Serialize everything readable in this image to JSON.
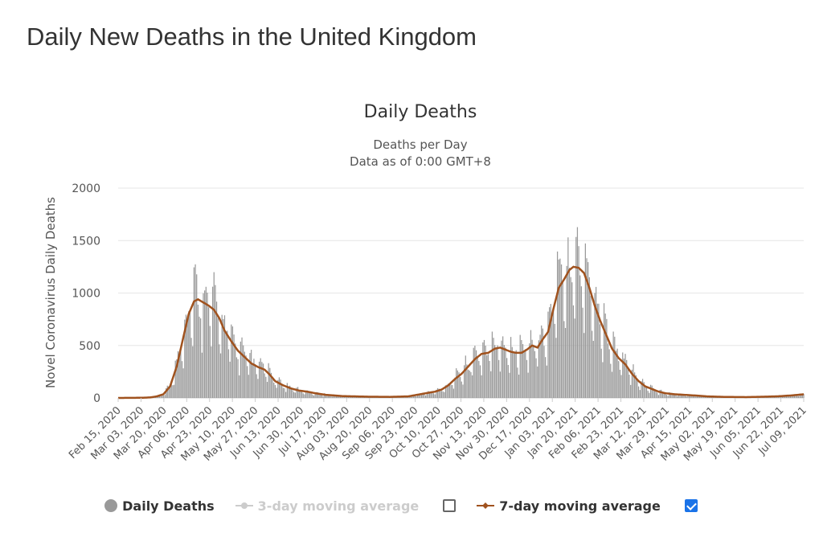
{
  "page": {
    "title": "Daily New Deaths in the United Kingdom"
  },
  "chart_data": {
    "type": "bar",
    "title": "Daily Deaths",
    "subtitle_lines": [
      "Deaths per Day",
      "Data as of 0:00 GMT+8"
    ],
    "xlabel": "",
    "ylabel": "Novel Coronavirus Daily Deaths",
    "ylim": [
      0,
      2000
    ],
    "y_ticks": [
      "0",
      "500",
      "1000",
      "1500",
      "2000"
    ],
    "x_range": [
      "2020-02-15",
      "2021-07-14"
    ],
    "x_tick_labels": [
      "Feb 15, 2020",
      "Mar 03, 2020",
      "Mar 20, 2020",
      "Apr 06, 2020",
      "Apr 23, 2020",
      "May 10, 2020",
      "May 27, 2020",
      "Jun 13, 2020",
      "Jun 30, 2020",
      "Jul 17, 2020",
      "Aug 03, 2020",
      "Aug 20, 2020",
      "Sep 06, 2020",
      "Sep 23, 2020",
      "Oct 10, 2020",
      "Oct 27, 2020",
      "Nov 13, 2020",
      "Nov 30, 2020",
      "Dec 17, 2020",
      "Jan 03, 2021",
      "Jan 20, 2021",
      "Feb 06, 2021",
      "Feb 23, 2021",
      "Mar 12, 2021",
      "Mar 29, 2021",
      "Apr 15, 2021",
      "May 02, 2021",
      "May 19, 2021",
      "Jun 05, 2021",
      "Jun 22, 2021",
      "Jul 09, 2021"
    ],
    "grid": true,
    "legend_position": "bottom",
    "colors": {
      "bars": "#999999",
      "average_line": "#a0521e",
      "checkbox": "#1a73e8"
    },
    "series": [
      {
        "name": "Daily Deaths",
        "type": "bar",
        "visible": true,
        "checkbox": false
      },
      {
        "name": "3-day moving average",
        "type": "line",
        "visible": false,
        "checkbox": false
      },
      {
        "name": "7-day moving average",
        "type": "line",
        "visible": true,
        "checkbox": true,
        "points": [
          [
            "2020-02-15",
            0
          ],
          [
            "2020-03-05",
            2
          ],
          [
            "2020-03-10",
            5
          ],
          [
            "2020-03-15",
            15
          ],
          [
            "2020-03-20",
            35
          ],
          [
            "2020-03-25",
            110
          ],
          [
            "2020-03-30",
            300
          ],
          [
            "2020-04-04",
            580
          ],
          [
            "2020-04-08",
            800
          ],
          [
            "2020-04-12",
            920
          ],
          [
            "2020-04-15",
            940
          ],
          [
            "2020-04-19",
            910
          ],
          [
            "2020-04-23",
            880
          ],
          [
            "2020-04-27",
            840
          ],
          [
            "2020-05-01",
            760
          ],
          [
            "2020-05-05",
            640
          ],
          [
            "2020-05-10",
            540
          ],
          [
            "2020-05-15",
            450
          ],
          [
            "2020-05-20",
            390
          ],
          [
            "2020-05-25",
            330
          ],
          [
            "2020-05-30",
            295
          ],
          [
            "2020-06-04",
            270
          ],
          [
            "2020-06-08",
            220
          ],
          [
            "2020-06-12",
            160
          ],
          [
            "2020-06-18",
            120
          ],
          [
            "2020-06-24",
            90
          ],
          [
            "2020-06-30",
            70
          ],
          [
            "2020-07-06",
            60
          ],
          [
            "2020-07-12",
            45
          ],
          [
            "2020-07-20",
            30
          ],
          [
            "2020-08-01",
            18
          ],
          [
            "2020-08-20",
            12
          ],
          [
            "2020-09-06",
            10
          ],
          [
            "2020-09-20",
            15
          ],
          [
            "2020-10-01",
            40
          ],
          [
            "2020-10-10",
            60
          ],
          [
            "2020-10-15",
            80
          ],
          [
            "2020-10-20",
            120
          ],
          [
            "2020-10-25",
            180
          ],
          [
            "2020-10-30",
            230
          ],
          [
            "2020-11-04",
            300
          ],
          [
            "2020-11-09",
            370
          ],
          [
            "2020-11-14",
            420
          ],
          [
            "2020-11-19",
            430
          ],
          [
            "2020-11-24",
            470
          ],
          [
            "2020-11-28",
            480
          ],
          [
            "2020-12-02",
            460
          ],
          [
            "2020-12-06",
            440
          ],
          [
            "2020-12-10",
            430
          ],
          [
            "2020-12-14",
            430
          ],
          [
            "2020-12-18",
            460
          ],
          [
            "2020-12-22",
            500
          ],
          [
            "2020-12-26",
            480
          ],
          [
            "2020-12-30",
            560
          ],
          [
            "2021-01-03",
            630
          ],
          [
            "2021-01-07",
            850
          ],
          [
            "2021-01-11,",
            1050
          ],
          [
            "2021-01-15",
            1130
          ],
          [
            "2021-01-19",
            1220
          ],
          [
            "2021-01-22",
            1250
          ],
          [
            "2021-01-26",
            1240
          ],
          [
            "2021-01-30",
            1190
          ],
          [
            "2021-02-03",
            1050
          ],
          [
            "2021-02-07",
            880
          ],
          [
            "2021-02-11",
            740
          ],
          [
            "2021-02-15",
            620
          ],
          [
            "2021-02-20",
            470
          ],
          [
            "2021-02-25",
            380
          ],
          [
            "2021-03-02",
            320
          ],
          [
            "2021-03-07",
            230
          ],
          [
            "2021-03-12",
            160
          ],
          [
            "2021-03-17",
            110
          ],
          [
            "2021-03-22",
            85
          ],
          [
            "2021-03-27",
            60
          ],
          [
            "2021-04-01",
            45
          ],
          [
            "2021-04-08",
            35
          ],
          [
            "2021-04-15",
            30
          ],
          [
            "2021-04-25",
            22
          ],
          [
            "2021-05-02",
            15
          ],
          [
            "2021-05-15",
            10
          ],
          [
            "2021-06-01",
            8
          ],
          [
            "2021-06-15",
            12
          ],
          [
            "2021-06-25",
            16
          ],
          [
            "2021-07-05",
            24
          ],
          [
            "2021-07-14",
            35
          ]
        ]
      }
    ]
  },
  "legend": {
    "daily": {
      "label": "Daily Deaths"
    },
    "avg3": {
      "label": "3-day moving average"
    },
    "avg7": {
      "label": "7-day moving average"
    }
  }
}
